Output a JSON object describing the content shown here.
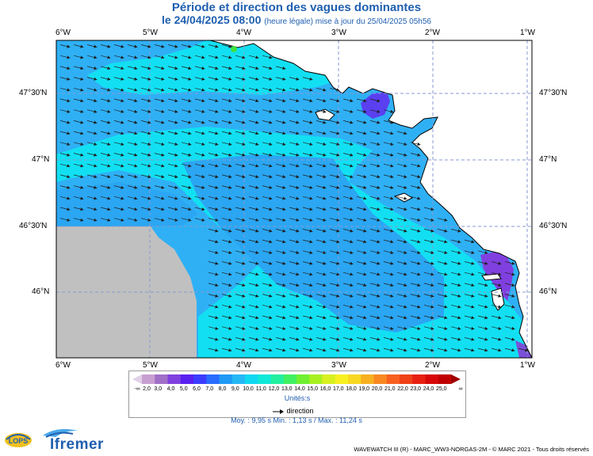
{
  "title": {
    "line1": "Période et direction des vagues dominantes",
    "line2_main": "le 24/04/2025 08:00",
    "line2_detail": "(heure légale) mise à jour du 25/04/2025 05h56"
  },
  "map": {
    "lon_labels": [
      "6°W",
      "5°W",
      "4°W",
      "3°W",
      "2°W",
      "1°W"
    ],
    "lat_labels": [
      "47°30'N",
      "47°N",
      "46°30'N",
      "46°N"
    ],
    "colors": {
      "ocean_main": "#2fb0f5",
      "ocean_cyan": "#12e0f2",
      "ocean_blue": "#1a9cf0",
      "no_data": "#c0c0c0",
      "land": "#ffffff",
      "grid": "#8a9ad0",
      "arrow": "#202020"
    }
  },
  "legend": {
    "labels": [
      "-∞",
      "2,0",
      "3,0",
      "4,0",
      "5,0",
      "6,0",
      "7,0",
      "8,0",
      "9,0",
      "10,0",
      "11,0",
      "12,0",
      "13,0",
      "14,0",
      "15,0",
      "16,0",
      "17,0",
      "18,0",
      "19,0",
      "20,0",
      "21,0",
      "22,0",
      "23,0",
      "24,0",
      "25,0",
      "∞"
    ],
    "colors": [
      "#c8a0d0",
      "#a070c8",
      "#8040e0",
      "#5a20f0",
      "#3c3cff",
      "#2a6cff",
      "#1f9af5",
      "#25b8f5",
      "#10d8f0",
      "#10e8d8",
      "#20f0a0",
      "#40f060",
      "#70f030",
      "#a8f020",
      "#d8f020",
      "#f8f020",
      "#f8d820",
      "#f8b020",
      "#f88820",
      "#f86020",
      "#f04018",
      "#e82010",
      "#d80808",
      "#c00000"
    ],
    "unit_label": "Unités:s",
    "direction_label": "direction"
  },
  "stats": {
    "text": "Moy. : 9,95 s    Min. : 1,13 s / Max. : 11,24 s"
  },
  "logos": {
    "lops": "LOPS",
    "ifremer": "Ifremer"
  },
  "copyright": "WAVEWATCH III (R) - MARC_WW3-NORGAS-2M - © MARC 2021 - Tous droits réservés"
}
